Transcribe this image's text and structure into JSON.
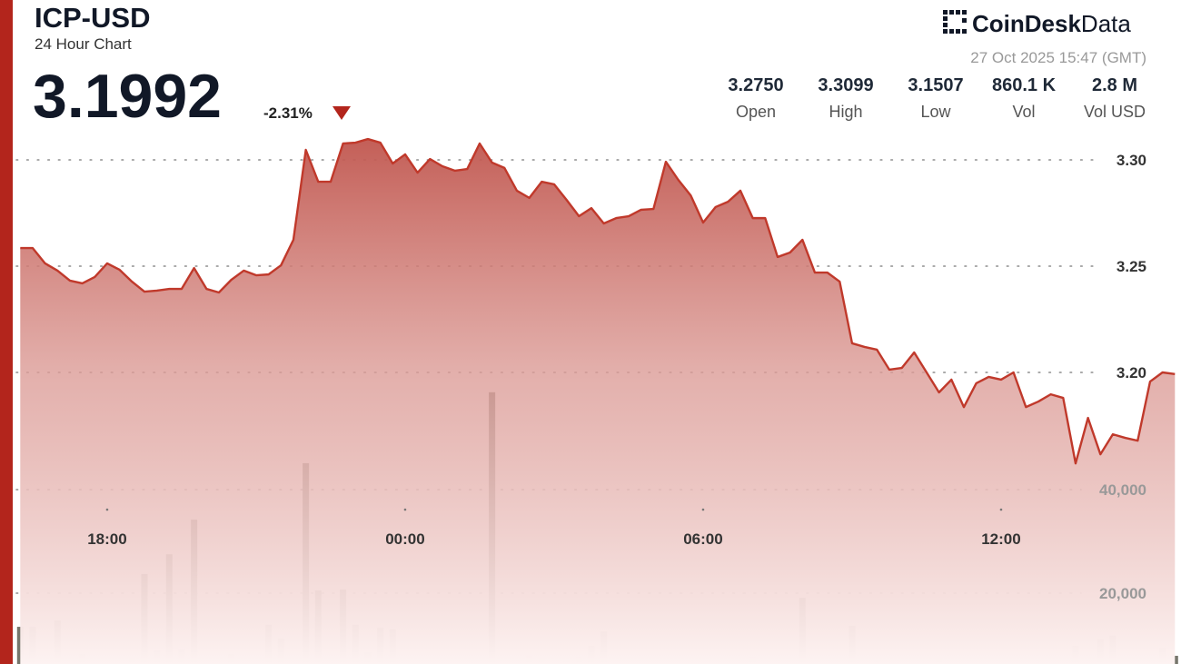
{
  "header": {
    "symbol": "ICP-USD",
    "subtitle": "24 Hour Chart",
    "price": "3.1992",
    "change": "-2.31%",
    "brand": [
      "CoinDesk",
      "Data"
    ],
    "timestamp": "27 Oct 2025 15:47 (GMT)",
    "stats": [
      {
        "value": "3.2750",
        "label": "Open"
      },
      {
        "value": "3.3099",
        "label": "High"
      },
      {
        "value": "3.1507",
        "label": "Low"
      },
      {
        "value": "860.1 K",
        "label": "Vol"
      },
      {
        "value": "2.8 M",
        "label": "Vol USD"
      }
    ]
  },
  "chart_data": {
    "type": "line",
    "categories": [
      null,
      null,
      null,
      null,
      null,
      null,
      null,
      "18:00",
      null,
      null,
      null,
      null,
      null,
      null,
      null,
      null,
      null,
      null,
      null,
      null,
      null,
      null,
      null,
      null,
      null,
      null,
      null,
      null,
      null,
      null,
      null,
      "00:00",
      null,
      null,
      null,
      null,
      null,
      null,
      null,
      null,
      null,
      null,
      null,
      null,
      null,
      null,
      null,
      null,
      null,
      null,
      null,
      null,
      null,
      null,
      null,
      "06:00",
      null,
      null,
      null,
      null,
      null,
      null,
      null,
      null,
      null,
      null,
      null,
      null,
      null,
      null,
      null,
      null,
      null,
      null,
      null,
      null,
      null,
      null,
      null,
      "12:00",
      null,
      null,
      null,
      null,
      null,
      null,
      null,
      null,
      null,
      null,
      null,
      null,
      null,
      null
    ],
    "series": [
      {
        "color": "#c0392b",
        "values": [
          3.2585,
          3.2585,
          3.2513,
          3.2479,
          3.2432,
          3.2419,
          3.2449,
          3.2513,
          3.2483,
          3.2427,
          3.238,
          3.2385,
          3.2393,
          3.2393,
          3.2491,
          3.2393,
          3.2376,
          3.2436,
          3.2479,
          3.2457,
          3.2461,
          3.2504,
          3.2624,
          3.3047,
          3.2897,
          3.2897,
          3.3077,
          3.3081,
          3.3098,
          3.3081,
          3.2983,
          3.3026,
          3.294,
          3.3004,
          3.297,
          3.2949,
          3.2957,
          3.3077,
          3.2987,
          3.2962,
          3.2855,
          3.2821,
          3.2897,
          3.2885,
          3.2812,
          3.2735,
          3.2773,
          3.2701,
          3.2726,
          3.2735,
          3.2765,
          3.2769,
          3.2991,
          3.2906,
          3.2833,
          3.2705,
          3.2778,
          3.2803,
          3.2855,
          3.2726,
          3.2726,
          3.2543,
          3.2564,
          3.2624,
          3.247,
          3.247,
          3.2427,
          3.2137,
          3.212,
          3.2107,
          3.2013,
          3.2021,
          3.2094,
          3.2,
          3.1906,
          3.1966,
          3.1837,
          3.1949,
          3.1979,
          3.1966,
          3.2,
          3.1837,
          3.1863,
          3.1897,
          3.188,
          3.1572,
          3.1786,
          3.1615,
          3.1709,
          3.1692,
          3.1679,
          3.1957,
          3.2,
          3.1992
        ]
      },
      {
        "type": "bar",
        "axis": "y2",
        "color": "#76766c",
        "values": [
          13500,
          13500,
          2000,
          14700,
          2000,
          8200,
          2000,
          2000,
          2000,
          7400,
          23700,
          8900,
          27500,
          9100,
          34200,
          2000,
          2000,
          8200,
          2000,
          2000,
          13900,
          11200,
          2000,
          45100,
          20500,
          2000,
          20700,
          13900,
          8600,
          13300,
          13000,
          2000,
          2000,
          2000,
          2000,
          2000,
          2000,
          2000,
          58800,
          2000,
          2000,
          7900,
          7500,
          2000,
          7000,
          7700,
          9800,
          12600,
          2000,
          2000,
          2000,
          2000,
          2000,
          2000,
          2000,
          2000,
          2000,
          2000,
          2000,
          7700,
          2000,
          2000,
          2000,
          19100,
          6500,
          6500,
          2000,
          13700,
          2000,
          7000,
          2000,
          2000,
          2000,
          2000,
          7400,
          2000,
          2000,
          2000,
          2000,
          2000,
          2000,
          2000,
          2000,
          2000,
          2000,
          9800,
          2000,
          11100,
          11800,
          2000,
          2000,
          2000,
          9500,
          7900
        ]
      }
    ],
    "ylim": [
      3.06,
      3.32
    ],
    "yticks": [
      {
        "value": 3.2,
        "label": "3.20"
      },
      3.25,
      {
        "value": 3.3,
        "label": "3.30"
      }
    ],
    "y2lim": [
      0,
      100000
    ],
    "y2ticks": [
      {
        "value": 20000,
        "label": "20,000"
      },
      {
        "value": 40000,
        "label": "40,000"
      }
    ],
    "grid": true
  }
}
